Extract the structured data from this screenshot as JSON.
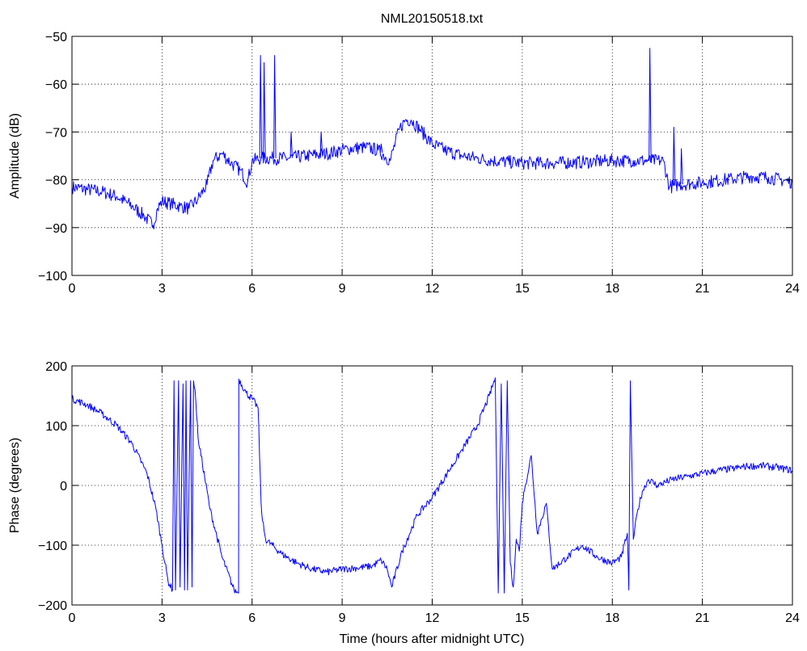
{
  "figure": {
    "title": "NML20150518.txt"
  },
  "colors": {
    "series": "#0000ff",
    "axes": "#000000",
    "background": "#ffffff"
  },
  "chart_data": [
    {
      "type": "line",
      "title": "NML20150518.txt",
      "xlabel": "",
      "ylabel": "Amplitude (dB)",
      "xlim": [
        0,
        24
      ],
      "ylim": [
        -100,
        -50
      ],
      "xticks": [
        0,
        3,
        6,
        9,
        12,
        15,
        18,
        21,
        24
      ],
      "yticks": [
        -100,
        -90,
        -80,
        -70,
        -60,
        -50
      ],
      "grid": true,
      "legend": "none",
      "series": [
        {
          "x": [
            0,
            0.5,
            1.0,
            1.5,
            2.0,
            2.4,
            2.7,
            2.85,
            3.0,
            3.3,
            3.6,
            3.9,
            4.2,
            4.5,
            4.7,
            5.0,
            5.3,
            5.6,
            5.85,
            6.0,
            6.3,
            6.7,
            7.2,
            7.8,
            8.5,
            9.2,
            9.8,
            10.2,
            10.6,
            10.9,
            11.1,
            11.3,
            11.6,
            12.0,
            12.5,
            13.0,
            13.5,
            14.0,
            15.0,
            16.0,
            17.0,
            18.0,
            18.7,
            19.2,
            19.7,
            19.9,
            20.2,
            20.6,
            21.0,
            21.5,
            22.0,
            22.6,
            23.2,
            23.6,
            24.0
          ],
          "values": [
            -81.5,
            -82,
            -82.5,
            -83.5,
            -85.5,
            -87.5,
            -89.5,
            -86,
            -84.5,
            -85,
            -85.5,
            -86,
            -84,
            -81,
            -76,
            -74.5,
            -76.5,
            -78,
            -80.5,
            -76,
            -75.5,
            -75.5,
            -75.5,
            -75,
            -74.5,
            -73.5,
            -73.2,
            -73.8,
            -76,
            -69.5,
            -67.5,
            -67.5,
            -69.5,
            -72.5,
            -74,
            -75,
            -75.5,
            -76,
            -76.5,
            -76.5,
            -76.3,
            -76,
            -76,
            -76,
            -76,
            -81.5,
            -81,
            -80.8,
            -80.6,
            -80.2,
            -79.8,
            -79.3,
            -79.5,
            -80,
            -80.5
          ]
        }
      ],
      "spikes": [
        {
          "x": 6.28,
          "to": -54
        },
        {
          "x": 6.4,
          "to": -55.5
        },
        {
          "x": 6.75,
          "to": -54
        },
        {
          "x": 7.3,
          "to": -70
        },
        {
          "x": 8.3,
          "to": -70
        },
        {
          "x": 10.3,
          "to": -72.5
        },
        {
          "x": 19.25,
          "to": -52.5
        },
        {
          "x": 20.05,
          "to": -69
        },
        {
          "x": 20.3,
          "to": -73.5
        }
      ]
    },
    {
      "type": "line",
      "title": "",
      "xlabel": "Time (hours after midnight UTC)",
      "ylabel": "Phase (degrees)",
      "xlim": [
        0,
        24
      ],
      "ylim": [
        -200,
        200
      ],
      "xticks": [
        0,
        3,
        6,
        9,
        12,
        15,
        18,
        21,
        24
      ],
      "yticks": [
        -200,
        -100,
        0,
        100,
        200
      ],
      "grid": true,
      "legend": "none",
      "series": [
        {
          "x": [
            0,
            0.5,
            1.0,
            1.5,
            2.0,
            2.5,
            2.8,
            3.0,
            3.2,
            3.35,
            3.4,
            3.45,
            3.55,
            3.6,
            3.7,
            3.75,
            3.8,
            3.85,
            3.95,
            4.0,
            4.05,
            4.1,
            4.2,
            4.6,
            5.0,
            5.4,
            5.55,
            5.56,
            5.8,
            6.0,
            6.2,
            6.3,
            6.35,
            6.45,
            7.0,
            7.5,
            8.0,
            8.5,
            9.0,
            9.5,
            10.0,
            10.3,
            10.5,
            10.65,
            11.0,
            11.5,
            12.0,
            12.5,
            13.0,
            13.5,
            13.9,
            14.1,
            14.2,
            14.3,
            14.4,
            14.5,
            14.6,
            14.7,
            14.8,
            14.9,
            15.0,
            15.1,
            15.3,
            15.5,
            15.8,
            16.0,
            16.5,
            17.0,
            17.5,
            18.0,
            18.3,
            18.5,
            18.55,
            18.6,
            18.7,
            18.85,
            19.0,
            19.2,
            19.5,
            20.0,
            20.5,
            21.0,
            21.5,
            22.0,
            22.5,
            23.0,
            23.5,
            24.0
          ],
          "values": [
            145,
            135,
            120,
            100,
            70,
            20,
            -40,
            -100,
            -160,
            -175,
            175,
            -175,
            175,
            -170,
            170,
            -175,
            175,
            -175,
            175,
            -170,
            175,
            160,
            80,
            -40,
            -120,
            -175,
            -180,
            178,
            155,
            145,
            130,
            -30,
            -60,
            -90,
            -115,
            -130,
            -140,
            -145,
            -140,
            -138,
            -135,
            -125,
            -140,
            -170,
            -110,
            -50,
            -20,
            20,
            60,
            100,
            150,
            180,
            -180,
            170,
            -180,
            175,
            -130,
            -170,
            -90,
            -110,
            -30,
            0,
            50,
            -80,
            -30,
            -140,
            -120,
            -100,
            -120,
            -130,
            -120,
            -80,
            -175,
            175,
            -90,
            -40,
            -10,
            10,
            0,
            10,
            15,
            20,
            25,
            28,
            32,
            33,
            30,
            25
          ]
        }
      ]
    }
  ],
  "texts": {
    "top_title": "NML20150518.txt",
    "top_ylabel": "Amplitude (dB)",
    "bottom_ylabel": "Phase (degrees)",
    "bottom_xlabel": "Time (hours after midnight UTC)"
  }
}
